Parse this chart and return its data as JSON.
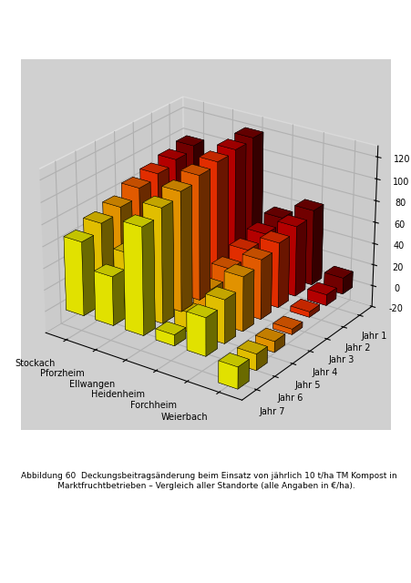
{
  "locations": [
    "Stockach",
    "Pforzheim",
    "Ellwangen",
    "Heidenheim",
    "Forchheim",
    "Weierbach"
  ],
  "years": [
    "Jahr 1",
    "Jahr 2",
    "Jahr 3",
    "Jahr 4",
    "Jahr 5",
    "Jahr 6",
    "Jahr 7"
  ],
  "values": [
    [
      68,
      45,
      98,
      10,
      35,
      -20
    ],
    [
      75,
      55,
      105,
      18,
      40,
      -15
    ],
    [
      80,
      60,
      110,
      30,
      50,
      -10
    ],
    [
      88,
      68,
      115,
      38,
      55,
      -5
    ],
    [
      92,
      72,
      118,
      45,
      60,
      5
    ],
    [
      96,
      78,
      120,
      50,
      65,
      10
    ],
    [
      100,
      82,
      122,
      55,
      70,
      15
    ]
  ],
  "colors": [
    "#FFFF00",
    "#FFD700",
    "#FFA500",
    "#FF6600",
    "#FF3300",
    "#CC0000",
    "#800000"
  ],
  "ylabel": "Alle Angaben in €/ha",
  "ylim": [
    -20,
    130
  ],
  "yticks": [
    -20,
    0,
    20,
    40,
    60,
    80,
    100,
    120
  ],
  "background_color": "#d0d0d0",
  "figure_bg": "#ffffff",
  "box_bg": "#f0f0f0"
}
